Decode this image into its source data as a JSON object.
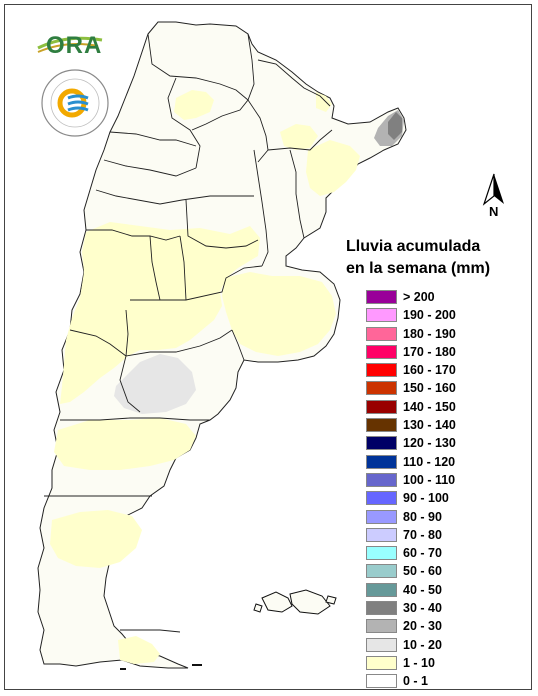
{
  "header": {
    "ora_logo_text": "ORA",
    "seal_text": "SERVICIO METEOROLÓGICO NACIONAL · ARGENTINA"
  },
  "compass": {
    "label": "N"
  },
  "legend": {
    "title_line1": "Lluvia acumulada",
    "title_line2": "en la semana (mm)",
    "items": [
      {
        "label": "> 200",
        "color": "#990099"
      },
      {
        "label": "190 - 200",
        "color": "#ff99ff"
      },
      {
        "label": "180 - 190",
        "color": "#ff6699"
      },
      {
        "label": "170 - 180",
        "color": "#ff0066"
      },
      {
        "label": "160 - 170",
        "color": "#ff0000"
      },
      {
        "label": "150 - 160",
        "color": "#cc3300"
      },
      {
        "label": "140 - 150",
        "color": "#990000"
      },
      {
        "label": "130 - 140",
        "color": "#663300"
      },
      {
        "label": "120 - 130",
        "color": "#000066"
      },
      {
        "label": "110 - 120",
        "color": "#003399"
      },
      {
        "label": "100 - 110",
        "color": "#6666cc"
      },
      {
        "label": "90 - 100",
        "color": "#6666ff"
      },
      {
        "label": "80 - 90",
        "color": "#9999ff"
      },
      {
        "label": "70 - 80",
        "color": "#ccccff"
      },
      {
        "label": "60 - 70",
        "color": "#99ffff"
      },
      {
        "label": "50 - 60",
        "color": "#99cccc"
      },
      {
        "label": "40 - 50",
        "color": "#669999"
      },
      {
        "label": "30 - 40",
        "color": "#808080"
      },
      {
        "label": "20 - 30",
        "color": "#b3b3b3"
      },
      {
        "label": "10 - 20",
        "color": "#e6e6e6"
      },
      {
        "label": "1 - 10",
        "color": "#ffffcc"
      },
      {
        "label": "0 - 1",
        "color": "#ffffff"
      }
    ]
  },
  "map_colors": {
    "base": "#fcfcf4",
    "light_yellow": "#ffffcc",
    "light_gray": "#e6e6e6",
    "mid_gray": "#b3b3b3",
    "dark_gray": "#808080",
    "border": "#222222"
  }
}
